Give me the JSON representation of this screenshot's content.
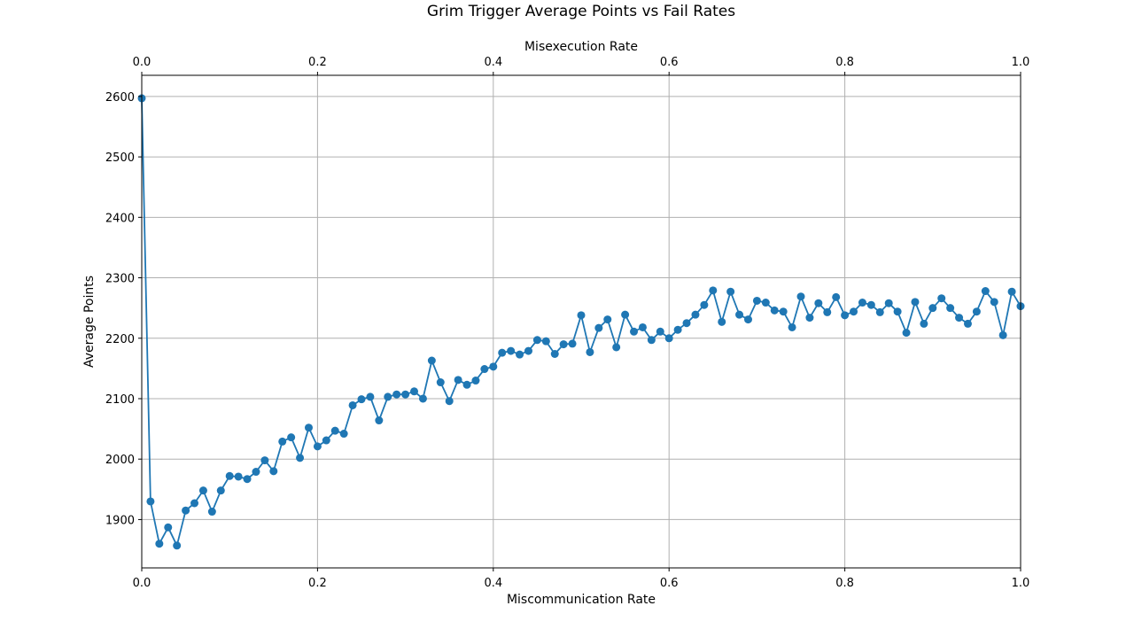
{
  "chart_data": {
    "type": "line",
    "title": "Grim Trigger Average Points vs Fail Rates",
    "xlabel": "Miscommunication Rate",
    "x2label": "Misexecution Rate",
    "ylabel": "Average Points",
    "xlim": [
      0,
      1.0
    ],
    "ylim": [
      1820,
      2635
    ],
    "x_ticks": [
      0.0,
      0.2,
      0.4,
      0.6,
      0.8,
      1.0
    ],
    "x_tick_labels": [
      "0.0",
      "0.2",
      "0.4",
      "0.6",
      "0.8",
      "1.0"
    ],
    "y_ticks": [
      1900,
      2000,
      2100,
      2200,
      2300,
      2400,
      2500,
      2600
    ],
    "y_tick_labels": [
      "1900",
      "2000",
      "2100",
      "2200",
      "2300",
      "2400",
      "2500",
      "2600"
    ],
    "grid": true,
    "color": "#1f77b4",
    "series": [
      {
        "x": [
          0.0,
          0.01,
          0.02,
          0.03,
          0.04,
          0.05,
          0.06,
          0.07,
          0.08,
          0.09,
          0.1,
          0.11,
          0.12,
          0.13,
          0.14,
          0.15,
          0.16,
          0.17,
          0.18,
          0.19,
          0.2,
          0.21,
          0.22,
          0.23,
          0.24,
          0.25,
          0.26,
          0.27,
          0.28,
          0.29,
          0.3,
          0.31,
          0.32,
          0.33,
          0.34,
          0.35,
          0.36,
          0.37,
          0.38,
          0.39,
          0.4,
          0.41,
          0.42,
          0.43,
          0.44,
          0.45,
          0.46,
          0.47,
          0.48,
          0.49,
          0.5,
          0.51,
          0.52,
          0.53,
          0.54,
          0.55,
          0.56,
          0.57,
          0.58,
          0.59,
          0.6,
          0.61,
          0.62,
          0.63,
          0.64,
          0.65,
          0.66,
          0.67,
          0.68,
          0.69,
          0.7,
          0.71,
          0.72,
          0.73,
          0.74,
          0.75,
          0.76,
          0.77,
          0.78,
          0.79,
          0.8,
          0.81,
          0.82,
          0.83,
          0.84,
          0.85,
          0.86,
          0.87,
          0.88,
          0.89,
          0.9,
          0.91,
          0.92,
          0.93,
          0.94,
          0.95,
          0.96,
          0.97,
          0.98,
          0.99,
          1.0
        ],
        "y": [
          2597,
          1930,
          1860,
          1887,
          1857,
          1915,
          1927,
          1948,
          1913,
          1948,
          1972,
          1971,
          1967,
          1979,
          1998,
          1980,
          2029,
          2036,
          2002,
          2052,
          2021,
          2031,
          2047,
          2042,
          2089,
          2099,
          2103,
          2064,
          2103,
          2107,
          2107,
          2112,
          2100,
          2163,
          2127,
          2096,
          2131,
          2123,
          2130,
          2149,
          2153,
          2176,
          2179,
          2173,
          2179,
          2197,
          2195,
          2174,
          2190,
          2191,
          2238,
          2177,
          2217,
          2231,
          2185,
          2239,
          2211,
          2218,
          2197,
          2211,
          2200,
          2214,
          2225,
          2239,
          2255,
          2279,
          2227,
          2277,
          2239,
          2231,
          2262,
          2259,
          2246,
          2244,
          2218,
          2269,
          2234,
          2258,
          2243,
          2268,
          2238,
          2244,
          2259,
          2255,
          2243,
          2258,
          2244,
          2209,
          2260,
          2224,
          2250,
          2266,
          2250,
          2234,
          2224,
          2244,
          2278,
          2260,
          2205,
          2277,
          2253
        ]
      }
    ]
  }
}
